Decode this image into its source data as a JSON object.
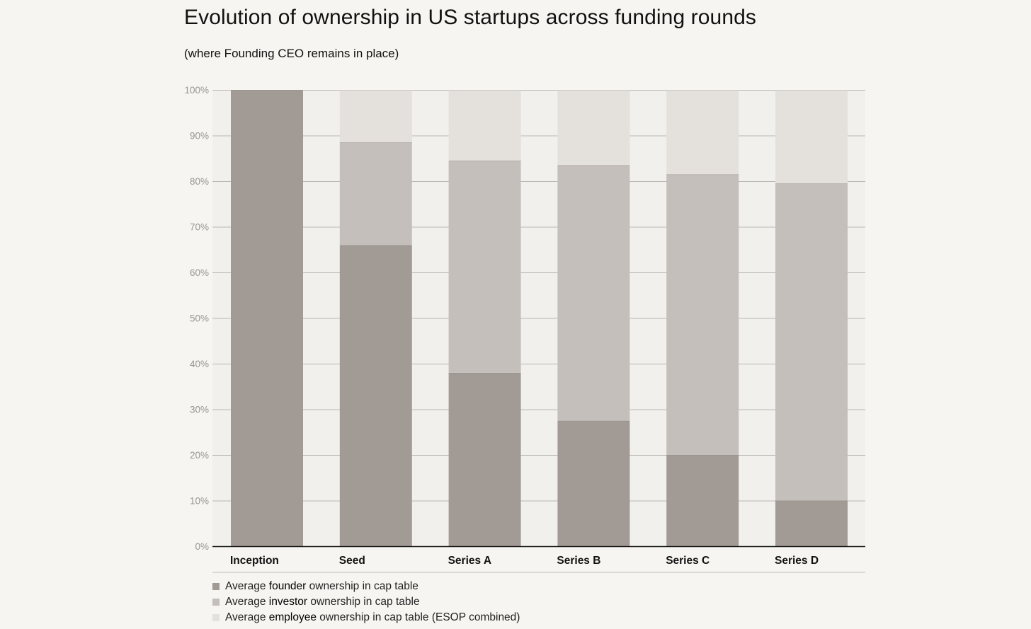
{
  "header": {
    "title": "Evolution of ownership in US startups across funding rounds",
    "subtitle": "(where Founding CEO remains in place)"
  },
  "colors": {
    "founder": "#a29b95",
    "investor": "#c4bfba",
    "employee": "#e4e1dc",
    "background": "#f6f5f1",
    "plot_band": "#f1f0ec",
    "gridline": "#a8a5a0",
    "axis": "#111111",
    "tick_label": "#9a9692"
  },
  "legend": {
    "items": [
      {
        "prefix": "Average ",
        "key": "founder",
        "suffix": " ownership in cap table",
        "color": "#a29b95"
      },
      {
        "prefix": "Average ",
        "key": "investor",
        "suffix": " ownership in cap table",
        "color": "#c4bfba"
      },
      {
        "prefix": "Average ",
        "key": "employee",
        "suffix": " ownership in cap table (ESOP combined)",
        "color": "#e4e1dc"
      }
    ]
  },
  "chart_data": {
    "type": "bar",
    "stacked": true,
    "categories": [
      "Inception",
      "Seed",
      "Series A",
      "Series B",
      "Series C",
      "Series D"
    ],
    "series": [
      {
        "name": "Average founder ownership in cap table",
        "values": [
          100,
          66,
          38,
          27.5,
          20,
          10
        ]
      },
      {
        "name": "Average investor ownership in cap table",
        "values": [
          0,
          22.5,
          46.5,
          56,
          61.5,
          69.5
        ]
      },
      {
        "name": "Average employee ownership in cap table (ESOP combined)",
        "values": [
          0,
          11.5,
          15.5,
          16.5,
          18.5,
          20.5
        ]
      }
    ],
    "yticks": [
      "0%",
      "10%",
      "20%",
      "30%",
      "40%",
      "50%",
      "60%",
      "70%",
      "80%",
      "90%",
      "100%"
    ],
    "ylim": [
      0,
      100
    ],
    "grid": true,
    "legend_position": "bottom-left"
  }
}
